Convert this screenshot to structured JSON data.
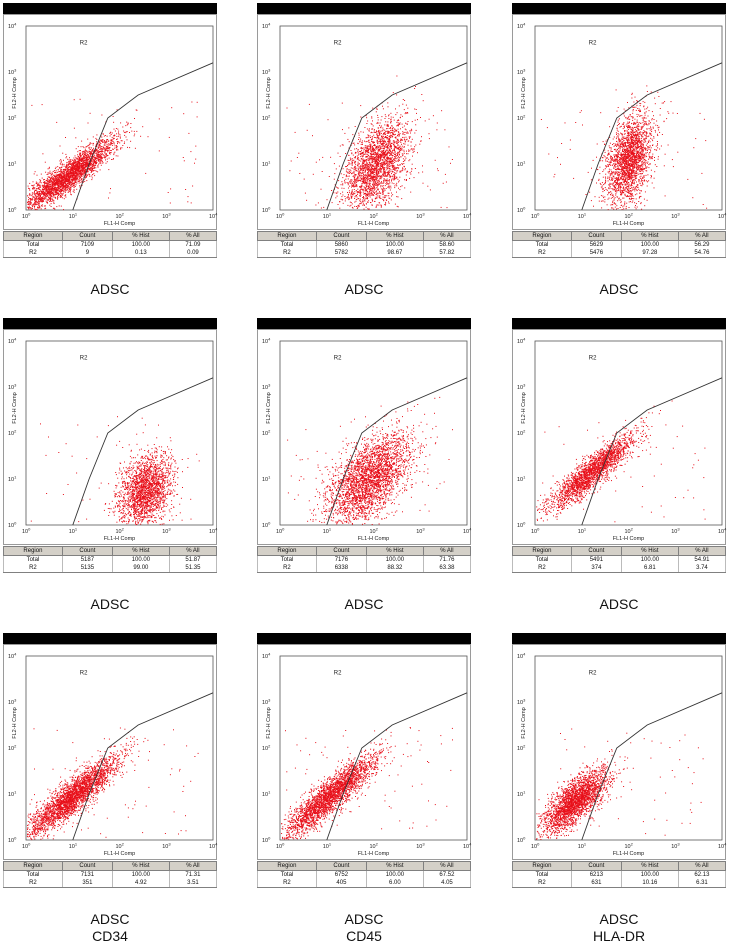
{
  "chart_data": [
    {
      "type": "scatter",
      "caption": [
        "ADSC"
      ],
      "xlabel": "FL1-H Comp",
      "ylabel": "FL2-H Comp",
      "gate_label": "R2",
      "xscale": "log",
      "yscale": "log",
      "xlim": [
        1,
        10000
      ],
      "ylim": [
        1,
        10000
      ],
      "ticks": [
        {
          "b": "10",
          "e": "0"
        },
        {
          "b": "10",
          "e": "1"
        },
        {
          "b": "10",
          "e": "2"
        },
        {
          "b": "10",
          "e": "3"
        },
        {
          "b": "10",
          "e": "4"
        }
      ],
      "stats": {
        "headers": [
          "Region",
          "Count",
          "% Hist",
          "% All"
        ],
        "rows": [
          [
            "Total",
            "7109",
            "100.00",
            "71.09"
          ],
          [
            "R2",
            "9",
            "0.13",
            "0.09"
          ]
        ]
      },
      "population": {
        "shape": "diagonal",
        "cx": 0.9,
        "cy": 0.75,
        "sx": 0.5,
        "sy": 0.4,
        "rho": 0.9
      }
    },
    {
      "type": "scatter",
      "caption": [
        "ADSC"
      ],
      "xlabel": "FL1-H Comp",
      "ylabel": "FL2-H Comp",
      "gate_label": "R2",
      "xscale": "log",
      "yscale": "log",
      "xlim": [
        1,
        10000
      ],
      "ylim": [
        1,
        10000
      ],
      "ticks": [
        {
          "b": "10",
          "e": "0"
        },
        {
          "b": "10",
          "e": "1"
        },
        {
          "b": "10",
          "e": "2"
        },
        {
          "b": "10",
          "e": "3"
        },
        {
          "b": "10",
          "e": "4"
        }
      ],
      "stats": {
        "headers": [
          "Region",
          "Count",
          "% Hist",
          "% All"
        ],
        "rows": [
          [
            "Total",
            "5860",
            "100.00",
            "58.60"
          ],
          [
            "R2",
            "5782",
            "98.67",
            "57.82"
          ]
        ]
      },
      "population": {
        "shape": "blob",
        "cx": 2.05,
        "cy": 1.0,
        "sx": 0.35,
        "sy": 0.5,
        "rho": 0.45
      }
    },
    {
      "type": "scatter",
      "caption": [
        "ADSC"
      ],
      "xlabel": "FL1-H Comp",
      "ylabel": "FL2-H Comp",
      "gate_label": "R2",
      "xscale": "log",
      "yscale": "log",
      "xlim": [
        1,
        10000
      ],
      "ylim": [
        1,
        10000
      ],
      "ticks": [
        {
          "b": "10",
          "e": "0"
        },
        {
          "b": "10",
          "e": "1"
        },
        {
          "b": "10",
          "e": "2"
        },
        {
          "b": "10",
          "e": "3"
        },
        {
          "b": "10",
          "e": "4"
        }
      ],
      "stats": {
        "headers": [
          "Region",
          "Count",
          "% Hist",
          "% All"
        ],
        "rows": [
          [
            "Total",
            "5629",
            "100.00",
            "56.29"
          ],
          [
            "R2",
            "5476",
            "97.28",
            "54.76"
          ]
        ]
      },
      "population": {
        "shape": "blob",
        "cx": 2.0,
        "cy": 1.1,
        "sx": 0.25,
        "sy": 0.5,
        "rho": 0.4
      }
    },
    {
      "type": "scatter",
      "caption": [
        "ADSC"
      ],
      "xlabel": "FL1-H Comp",
      "ylabel": "FL2-H Comp",
      "gate_label": "R2",
      "xscale": "log",
      "yscale": "log",
      "xlim": [
        1,
        10000
      ],
      "ylim": [
        1,
        10000
      ],
      "ticks": [
        {
          "b": "10",
          "e": "0"
        },
        {
          "b": "10",
          "e": "1"
        },
        {
          "b": "10",
          "e": "2"
        },
        {
          "b": "10",
          "e": "3"
        },
        {
          "b": "10",
          "e": "4"
        }
      ],
      "stats": {
        "headers": [
          "Region",
          "Count",
          "% Hist",
          "% All"
        ],
        "rows": [
          [
            "Total",
            "5187",
            "100.00",
            "51.87"
          ],
          [
            "R2",
            "5135",
            "99.00",
            "51.35"
          ]
        ]
      },
      "population": {
        "shape": "blob",
        "cx": 2.55,
        "cy": 0.75,
        "sx": 0.3,
        "sy": 0.4,
        "rho": 0.3
      }
    },
    {
      "type": "scatter",
      "caption": [
        "ADSC"
      ],
      "xlabel": "FL1-H Comp",
      "ylabel": "FL2-H Comp",
      "gate_label": "R2",
      "xscale": "log",
      "yscale": "log",
      "xlim": [
        1,
        10000
      ],
      "ylim": [
        1,
        10000
      ],
      "ticks": [
        {
          "b": "10",
          "e": "0"
        },
        {
          "b": "10",
          "e": "1"
        },
        {
          "b": "10",
          "e": "2"
        },
        {
          "b": "10",
          "e": "3"
        },
        {
          "b": "10",
          "e": "4"
        }
      ],
      "stats": {
        "headers": [
          "Region",
          "Count",
          "% Hist",
          "% All"
        ],
        "rows": [
          [
            "Total",
            "7176",
            "100.00",
            "71.76"
          ],
          [
            "R2",
            "6338",
            "88.32",
            "63.38"
          ]
        ]
      },
      "population": {
        "shape": "blob",
        "cx": 1.9,
        "cy": 1.0,
        "sx": 0.45,
        "sy": 0.5,
        "rho": 0.55
      }
    },
    {
      "type": "scatter",
      "caption": [
        "ADSC"
      ],
      "xlabel": "FL1-H Comp",
      "ylabel": "FL2-H Comp",
      "gate_label": "R2",
      "xscale": "log",
      "yscale": "log",
      "xlim": [
        1,
        10000
      ],
      "ylim": [
        1,
        10000
      ],
      "ticks": [
        {
          "b": "10",
          "e": "0"
        },
        {
          "b": "10",
          "e": "1"
        },
        {
          "b": "10",
          "e": "2"
        },
        {
          "b": "10",
          "e": "3"
        },
        {
          "b": "10",
          "e": "4"
        }
      ],
      "stats": {
        "headers": [
          "Region",
          "Count",
          "% Hist",
          "% All"
        ],
        "rows": [
          [
            "Total",
            "5491",
            "100.00",
            "54.91"
          ],
          [
            "R2",
            "374",
            "6.81",
            "3.74"
          ]
        ]
      },
      "population": {
        "shape": "diagonal",
        "cx": 1.2,
        "cy": 1.15,
        "sx": 0.45,
        "sy": 0.4,
        "rho": 0.9
      }
    },
    {
      "type": "scatter",
      "caption": [
        "ADSC",
        "CD34"
      ],
      "xlabel": "FL1-H Comp",
      "ylabel": "FL2-H Comp",
      "gate_label": "R2",
      "xscale": "log",
      "yscale": "log",
      "xlim": [
        1,
        10000
      ],
      "ylim": [
        1,
        10000
      ],
      "ticks": [
        {
          "b": "10",
          "e": "0"
        },
        {
          "b": "10",
          "e": "1"
        },
        {
          "b": "10",
          "e": "2"
        },
        {
          "b": "10",
          "e": "3"
        },
        {
          "b": "10",
          "e": "4"
        }
      ],
      "stats": {
        "headers": [
          "Region",
          "Count",
          "% Hist",
          "% All"
        ],
        "rows": [
          [
            "Total",
            "7131",
            "100.00",
            "71.31"
          ],
          [
            "R2",
            "351",
            "4.92",
            "3.51"
          ]
        ]
      },
      "population": {
        "shape": "diagonal",
        "cx": 1.0,
        "cy": 0.95,
        "sx": 0.5,
        "sy": 0.45,
        "rho": 0.9
      }
    },
    {
      "type": "scatter",
      "caption": [
        "ADSC",
        "CD45"
      ],
      "xlabel": "FL1-H Comp",
      "ylabel": "FL2-H Comp",
      "gate_label": "R2",
      "xscale": "log",
      "yscale": "log",
      "xlim": [
        1,
        10000
      ],
      "ylim": [
        1,
        10000
      ],
      "ticks": [
        {
          "b": "10",
          "e": "0"
        },
        {
          "b": "10",
          "e": "1"
        },
        {
          "b": "10",
          "e": "2"
        },
        {
          "b": "10",
          "e": "3"
        },
        {
          "b": "10",
          "e": "4"
        }
      ],
      "stats": {
        "headers": [
          "Region",
          "Count",
          "% Hist",
          "% All"
        ],
        "rows": [
          [
            "Total",
            "6752",
            "100.00",
            "67.52"
          ],
          [
            "R2",
            "405",
            "6.00",
            "4.05"
          ]
        ]
      },
      "population": {
        "shape": "diagonal",
        "cx": 1.05,
        "cy": 0.95,
        "sx": 0.5,
        "sy": 0.45,
        "rho": 0.9
      }
    },
    {
      "type": "scatter",
      "caption": [
        "ADSC",
        "HLA-DR"
      ],
      "xlabel": "FL1-H Comp",
      "ylabel": "FL2-H Comp",
      "gate_label": "R2",
      "xscale": "log",
      "yscale": "log",
      "xlim": [
        1,
        10000
      ],
      "ylim": [
        1,
        10000
      ],
      "ticks": [
        {
          "b": "10",
          "e": "0"
        },
        {
          "b": "10",
          "e": "1"
        },
        {
          "b": "10",
          "e": "2"
        },
        {
          "b": "10",
          "e": "3"
        },
        {
          "b": "10",
          "e": "4"
        }
      ],
      "stats": {
        "headers": [
          "Region",
          "Count",
          "% Hist",
          "% All"
        ],
        "rows": [
          [
            "Total",
            "6213",
            "100.00",
            "62.13"
          ],
          [
            "R2",
            "631",
            "10.16",
            "6.31"
          ]
        ]
      },
      "population": {
        "shape": "diagonal",
        "cx": 0.85,
        "cy": 0.85,
        "sx": 0.35,
        "sy": 0.35,
        "rho": 0.75
      }
    }
  ],
  "colors": {
    "dots": "#e8101a",
    "gate": "#333333",
    "header_bar": "#000000",
    "table_header": "#d4d0c8"
  }
}
